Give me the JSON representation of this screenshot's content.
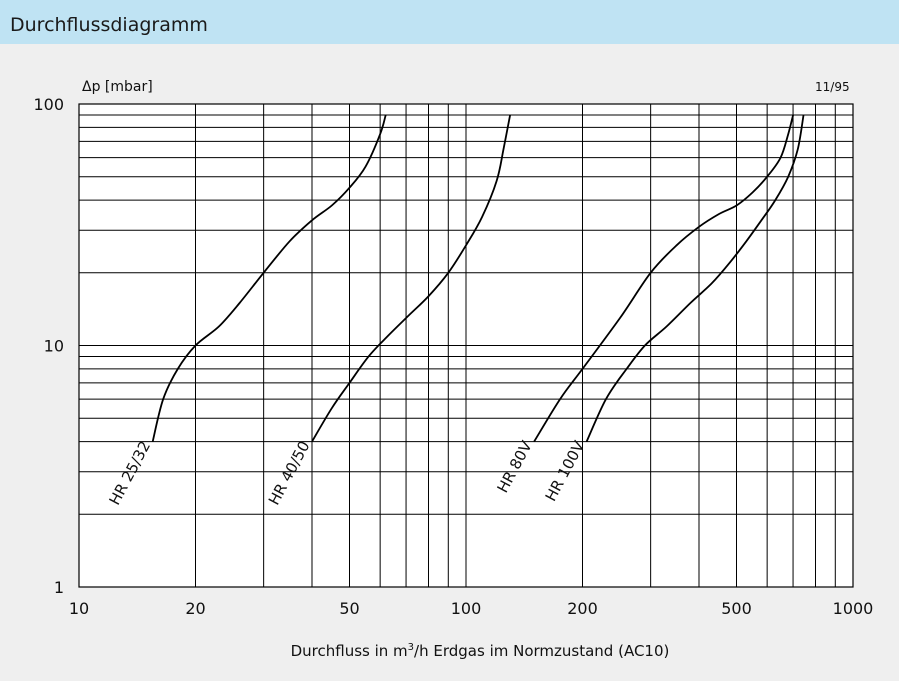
{
  "header": {
    "title": "Durchflussdiagramm"
  },
  "chart_data": {
    "type": "line",
    "xscale": "log",
    "yscale": "log",
    "xlim": [
      10,
      1000
    ],
    "ylim": [
      1,
      100
    ],
    "grid": true,
    "ylabel": "Δp [mbar]",
    "xlabel_main": "Durchfluss in m",
    "xlabel_sup": "3",
    "xlabel_rest": "/h Erdgas im Normzustand (AC10)",
    "version": "11/95",
    "x_ticks": [
      {
        "value": 10,
        "label": "10"
      },
      {
        "value": 20,
        "label": "20"
      },
      {
        "value": 50,
        "label": "50"
      },
      {
        "value": 100,
        "label": "100"
      },
      {
        "value": 200,
        "label": "200"
      },
      {
        "value": 500,
        "label": "500"
      },
      {
        "value": 1000,
        "label": "1000"
      }
    ],
    "y_ticks": [
      {
        "value": 1,
        "label": "1"
      },
      {
        "value": 10,
        "label": "10"
      },
      {
        "value": 100,
        "label": "100"
      }
    ],
    "series": [
      {
        "name": "HR 25/32",
        "x": [
          15.5,
          16.5,
          18,
          20,
          23,
          26,
          30,
          35,
          40,
          45,
          50,
          55,
          60,
          62
        ],
        "y": [
          4,
          6,
          8,
          10,
          12,
          15,
          20,
          27,
          33,
          38,
          45,
          55,
          75,
          90
        ]
      },
      {
        "name": "HR 40/50",
        "x": [
          40,
          45,
          50,
          56,
          63,
          70,
          80,
          90,
          100,
          110,
          120,
          125,
          130
        ],
        "y": [
          4,
          5.5,
          7,
          9,
          11,
          13,
          16,
          20,
          26,
          34,
          48,
          65,
          90
        ]
      },
      {
        "name": "HR 80V",
        "x": [
          150,
          175,
          200,
          250,
          300,
          350,
          400,
          450,
          500,
          550,
          600,
          650,
          680,
          700
        ],
        "y": [
          4,
          6,
          8,
          13,
          20,
          26,
          31,
          35,
          38,
          43,
          50,
          60,
          75,
          90
        ]
      },
      {
        "name": "HR 100V",
        "x": [
          205,
          230,
          260,
          290,
          330,
          380,
          430,
          480,
          530,
          580,
          630,
          680,
          720,
          745
        ],
        "y": [
          4,
          6,
          8,
          10,
          12,
          15,
          18,
          22,
          27,
          33,
          40,
          50,
          65,
          90
        ]
      }
    ]
  }
}
